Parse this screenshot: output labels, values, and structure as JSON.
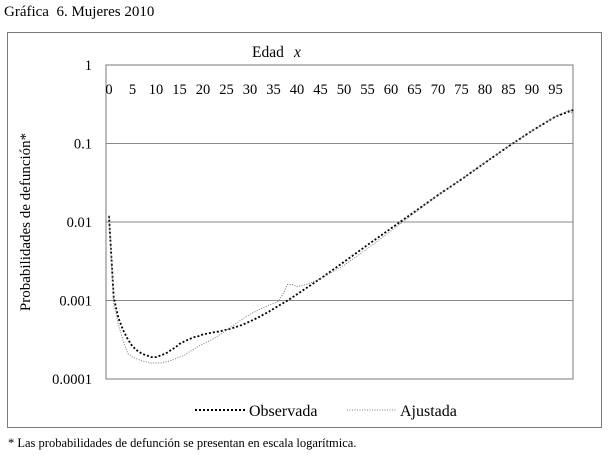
{
  "caption": "Gráfica  6. Mujeres 2010",
  "footnote": "* Las probabilidades de defunción se presentan en escala logarítmica.",
  "chart_data": {
    "type": "line",
    "title": "",
    "xlabel": "Edad",
    "xlabel_var": "x",
    "ylabel": "Probabilidades de defunción*",
    "yscale": "log",
    "xlim": [
      0,
      100
    ],
    "ylim": [
      0.0001,
      1
    ],
    "x_ticks": [
      0,
      5,
      10,
      15,
      20,
      25,
      30,
      35,
      40,
      45,
      50,
      55,
      60,
      65,
      70,
      75,
      80,
      85,
      90,
      95
    ],
    "x_axis_position": "top",
    "y_ticks": [
      {
        "value": 1,
        "label": "1"
      },
      {
        "value": 0.1,
        "label": "0.1"
      },
      {
        "value": 0.01,
        "label": "0.01"
      },
      {
        "value": 0.001,
        "label": "0.001"
      },
      {
        "value": 0.0001,
        "label": "0.0001"
      }
    ],
    "grid": "horizontal",
    "legend_position": "bottom",
    "series": [
      {
        "name": "Observada",
        "color": "#000000",
        "dash": "dotted",
        "x": [
          0,
          1,
          2,
          3,
          4,
          5,
          6,
          7,
          8,
          9,
          10,
          11,
          12,
          13,
          14,
          15,
          16,
          17,
          18,
          19,
          20,
          22,
          24,
          26,
          28,
          30,
          32,
          34,
          36,
          38,
          40,
          45,
          50,
          55,
          60,
          65,
          70,
          75,
          80,
          85,
          90,
          95,
          99
        ],
        "y": [
          0.012,
          0.0011,
          0.0006,
          0.00042,
          0.00032,
          0.00026,
          0.00023,
          0.00021,
          0.0002,
          0.00019,
          0.00019,
          0.0002,
          0.00021,
          0.00023,
          0.00025,
          0.00028,
          0.0003,
          0.00032,
          0.00034,
          0.00035,
          0.00037,
          0.00039,
          0.00041,
          0.00044,
          0.00048,
          0.00054,
          0.00062,
          0.00072,
          0.00085,
          0.001,
          0.0012,
          0.0019,
          0.0031,
          0.0051,
          0.0083,
          0.0135,
          0.022,
          0.035,
          0.057,
          0.092,
          0.145,
          0.22,
          0.27
        ]
      },
      {
        "name": "Ajustada",
        "color": "#7a7a7a",
        "dash": "dotted-fine",
        "x": [
          0,
          1,
          2,
          3,
          4,
          5,
          6,
          7,
          8,
          9,
          10,
          11,
          12,
          13,
          14,
          15,
          16,
          17,
          18,
          19,
          20,
          22,
          24,
          26,
          28,
          30,
          32,
          34,
          36,
          37,
          38,
          39,
          40,
          42,
          45,
          50,
          55,
          60,
          65,
          70,
          75,
          80,
          85,
          90,
          95,
          98,
          99
        ],
        "y": [
          0.012,
          0.0009,
          0.0005,
          0.00031,
          0.00021,
          0.00019,
          0.00018,
          0.00017,
          0.000165,
          0.00016,
          0.00016,
          0.00016,
          0.000165,
          0.00017,
          0.00018,
          0.00019,
          0.0002,
          0.00022,
          0.00024,
          0.00026,
          0.00028,
          0.00032,
          0.00038,
          0.00046,
          0.00056,
          0.00067,
          0.00077,
          0.00087,
          0.00097,
          0.0012,
          0.0016,
          0.0016,
          0.0015,
          0.0016,
          0.0019,
          0.0028,
          0.0046,
          0.0077,
          0.013,
          0.022,
          0.035,
          0.057,
          0.092,
          0.145,
          0.22,
          0.27,
          0.22
        ]
      }
    ]
  }
}
